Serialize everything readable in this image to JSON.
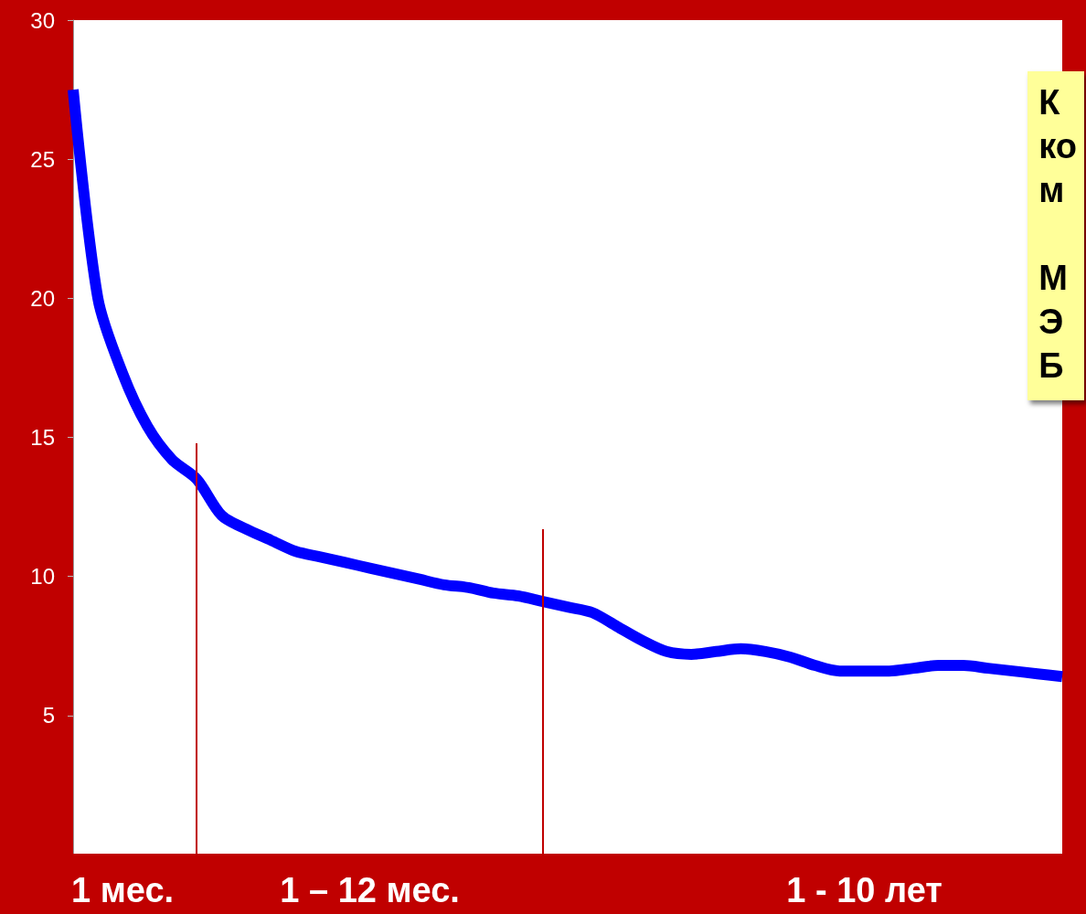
{
  "chart_data": {
    "type": "line",
    "categories": [
      null,
      null,
      "1 мес.",
      null,
      null,
      null,
      null,
      null,
      null,
      null,
      null,
      null,
      "1 – 12 мес.",
      null,
      null,
      null,
      null,
      null,
      null,
      null,
      null,
      null,
      null,
      null,
      null,
      null,
      null,
      null,
      null,
      null,
      null,
      null,
      "1 - 10 лет",
      null,
      null,
      null,
      null,
      null,
      null,
      null,
      null
    ],
    "series": [
      {
        "color": "#0000ff",
        "values": [
          27.5,
          20.0,
          17.3,
          15.4,
          14.2,
          13.5,
          12.2,
          11.7,
          11.3,
          10.9,
          10.7,
          10.5,
          10.3,
          10.1,
          9.9,
          9.7,
          9.6,
          9.4,
          9.3,
          9.1,
          8.9,
          8.7,
          8.2,
          7.7,
          7.3,
          7.2,
          7.3,
          7.4,
          7.3,
          7.1,
          6.8,
          6.6,
          6.6,
          6.6,
          6.7,
          6.8,
          6.8,
          6.7,
          6.6,
          6.5,
          6.4
        ]
      }
    ],
    "ylim": [
      0,
      30
    ],
    "yticks": [
      5,
      10,
      15,
      20,
      25,
      30
    ],
    "grid": false,
    "marker": "none",
    "line_style": "solid",
    "annotations": [
      "К\nко\nм\n\nМ\nЭ\nБ"
    ]
  }
}
